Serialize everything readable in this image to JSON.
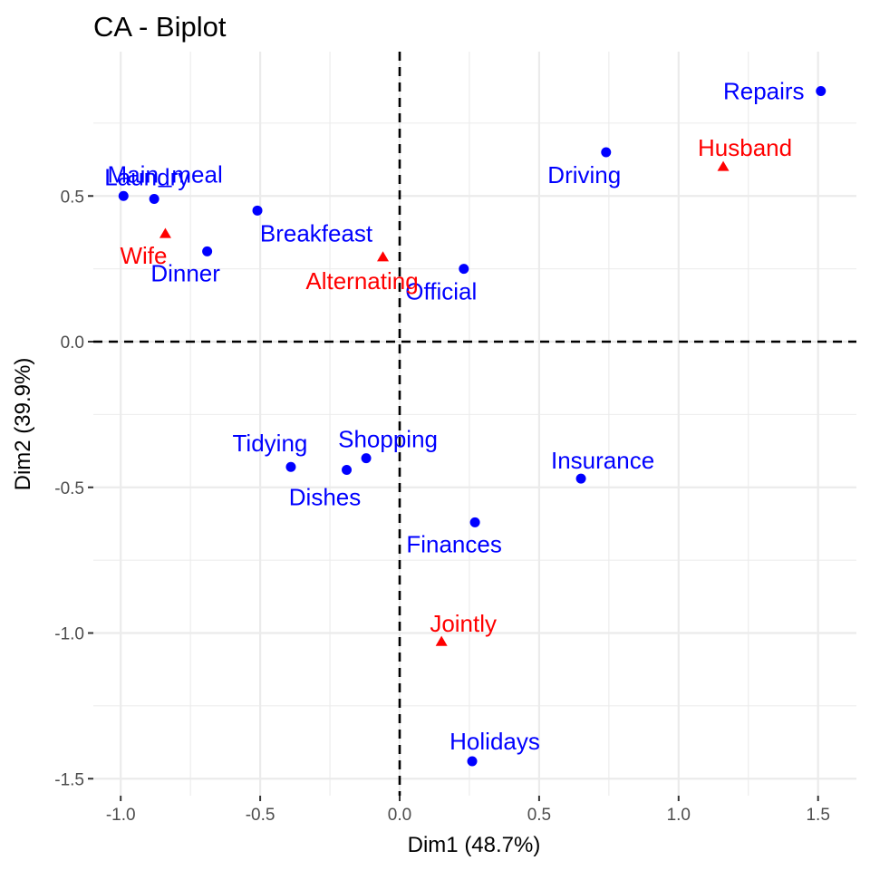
{
  "chart_data": {
    "type": "scatter",
    "title": "CA - Biplot",
    "xlabel": "Dim1 (48.7%)",
    "ylabel": "Dim2 (39.9%)",
    "xlim": [
      -1.11,
      1.64
    ],
    "ylim": [
      -1.56,
      0.98
    ],
    "x_ticks": [
      -1.0,
      -0.5,
      0.0,
      0.5,
      1.0,
      1.5
    ],
    "x_tick_labels": [
      "-1.0",
      "-0.5",
      "0.0",
      "0.5",
      "1.0",
      "1.5"
    ],
    "y_ticks": [
      -1.5,
      -1.0,
      -0.5,
      0.0,
      0.5
    ],
    "y_tick_labels": [
      "-1.5",
      "-1.0",
      "-0.5",
      "0.0",
      "0.5"
    ],
    "grid": true,
    "reference_lines": {
      "x": 0,
      "y": 0,
      "style": "dashed"
    },
    "series": [
      {
        "name": "",
        "marker": "circle",
        "color": "#0000ff",
        "points": [
          {
            "label": "Laundry",
            "x": -0.99,
            "y": 0.5
          },
          {
            "label": "Main_meal",
            "x": -0.88,
            "y": 0.49
          },
          {
            "label": "Dinner",
            "x": -0.69,
            "y": 0.31
          },
          {
            "label": "Breakfeast",
            "x": -0.51,
            "y": 0.45
          },
          {
            "label": "Tidying",
            "x": -0.39,
            "y": -0.43
          },
          {
            "label": "Dishes",
            "x": -0.19,
            "y": -0.44
          },
          {
            "label": "Shopping",
            "x": -0.12,
            "y": -0.4
          },
          {
            "label": "Official",
            "x": 0.23,
            "y": 0.25
          },
          {
            "label": "Driving",
            "x": 0.74,
            "y": 0.65
          },
          {
            "label": "Finances",
            "x": 0.27,
            "y": -0.62
          },
          {
            "label": "Insurance",
            "x": 0.65,
            "y": -0.47
          },
          {
            "label": "Repairs",
            "x": 1.51,
            "y": 0.86
          },
          {
            "label": "Holidays",
            "x": 0.26,
            "y": -1.44
          }
        ]
      },
      {
        "name": "",
        "marker": "triangle",
        "color": "#ff0000",
        "points": [
          {
            "label": "Wife",
            "x": -0.84,
            "y": 0.37
          },
          {
            "label": "Alternating",
            "x": -0.06,
            "y": 0.29
          },
          {
            "label": "Husband",
            "x": 1.16,
            "y": 0.6
          },
          {
            "label": "Jointly",
            "x": 0.15,
            "y": -1.03
          }
        ]
      }
    ]
  }
}
